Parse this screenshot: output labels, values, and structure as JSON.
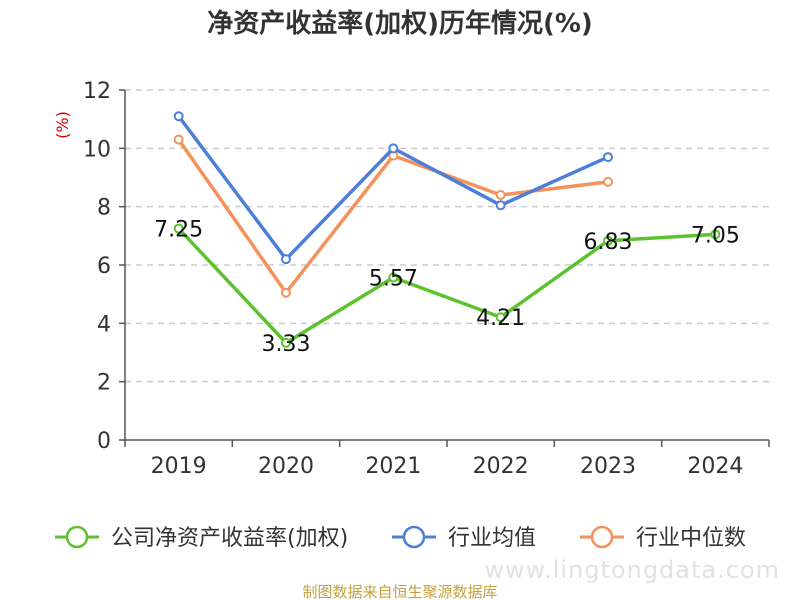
{
  "chart_data": {
    "type": "line",
    "title": "净资产收益率(加权)历年情况(%)",
    "ylabel": "(%)",
    "xlabel": "",
    "ylim": [
      0,
      12
    ],
    "yticks": [
      0,
      2,
      4,
      6,
      8,
      10,
      12
    ],
    "grid": true,
    "legend_position": "bottom",
    "categories": [
      "2019",
      "2020",
      "2021",
      "2022",
      "2023",
      "2024"
    ],
    "series": [
      {
        "name": "公司净资产收益率(加权)",
        "color": "#5cc22d",
        "values": [
          7.25,
          3.33,
          5.57,
          4.21,
          6.83,
          7.05
        ],
        "labels": [
          "7.25",
          "3.33",
          "5.57",
          "4.21",
          "6.83",
          "7.05"
        ]
      },
      {
        "name": "行业均值",
        "color": "#4e7fd8",
        "values": [
          11.1,
          6.2,
          10.0,
          8.05,
          9.7,
          null
        ]
      },
      {
        "name": "行业中位数",
        "color": "#f5915a",
        "values": [
          10.3,
          5.05,
          9.75,
          8.4,
          8.85,
          null
        ]
      }
    ]
  },
  "source": "制图数据来自恒生聚源数据库",
  "watermark": "www.lingtongdata.com"
}
